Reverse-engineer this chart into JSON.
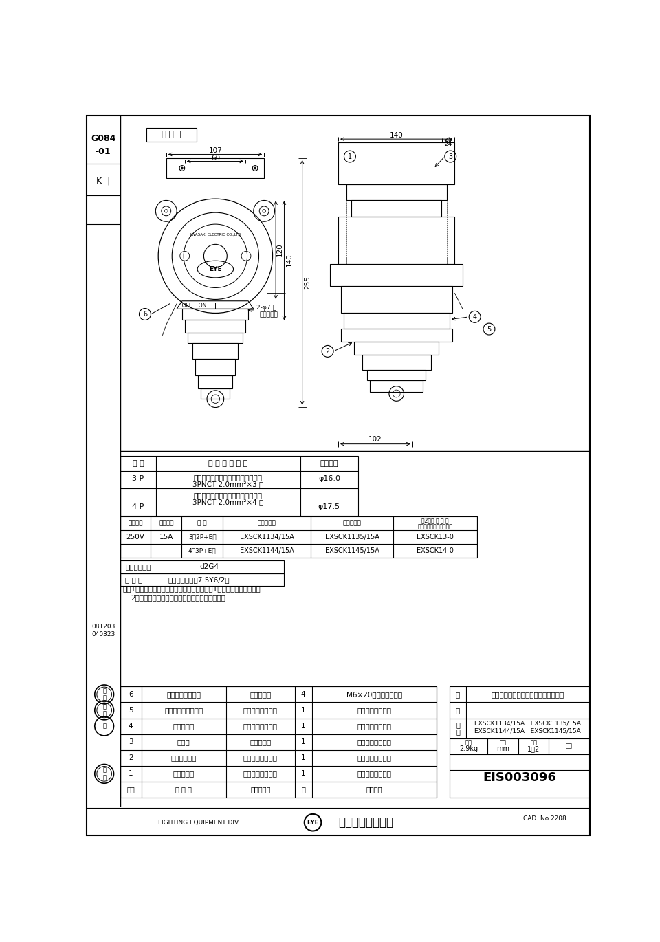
{
  "bg_color": "#ffffff",
  "title_product": "耐圧防爆形インターロックコンセント",
  "drawing_number": "EIS003096",
  "company": "岩崎電気株式会社",
  "left_code1": "G084",
  "left_code2": "-01",
  "left_code3": "K |",
  "stamp1": "081203",
  "stamp2": "040323",
  "indoor_label": "屋 内 用",
  "dim_107": "107",
  "dim_60": "60",
  "dim_140_top": "140",
  "dim_24": "24",
  "dim_120": "120",
  "dim_140_side": "140",
  "dim_255": "255",
  "dim_102": "102",
  "cable_table_headers": [
    "極 数",
    "適 合 ケ ー ブ ル",
    "仕上外径"
  ],
  "cable_rows": [
    [
      "3 P",
      "クロロプレンキャブタイヤケーブル\n3PNCT 2.0mm²×3 心",
      "φ16.0"
    ],
    [
      "4 P",
      "クロロプレンキャブタイヤケーブル\n3PNCT 2.0mm²×4 心",
      "φ17.5"
    ]
  ],
  "parts_table": [
    [
      "6",
      "カバー締付ボルト",
      "ステンレス",
      "4",
      "M6×20（六角ボルト）"
    ],
    [
      "5",
      "プラグ挿入口カバー",
      "アルミダイカスト",
      "1",
      "メラミン焼付塗装"
    ],
    [
      "4",
      "締付リング",
      "アルミダイカスト",
      "1",
      "メラミン焼付塗装"
    ],
    [
      "3",
      "端子箱",
      "ねずみ鋳物",
      "1",
      "メラミン焼付塗装"
    ],
    [
      "2",
      "プラグホルダ",
      "アルミダイカスト",
      "1",
      "メラミン焼付塗装"
    ],
    [
      "1",
      "本体カバー",
      "アルミダイカスト",
      "1",
      "メラミン焼付塗装"
    ]
  ],
  "parts_footer": [
    "部番",
    "部 品 名",
    "材質・材厚",
    "数",
    "値　　考"
  ],
  "weight": "2.9kg",
  "unit": "mm",
  "scale": "1：2",
  "cad_no": "CAD  No.2208",
  "lighting_div": "LIGHTING EQUIPMENT DIV."
}
